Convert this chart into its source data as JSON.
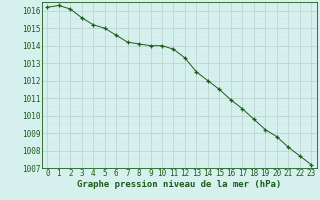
{
  "x": [
    0,
    1,
    2,
    3,
    4,
    5,
    6,
    7,
    8,
    9,
    10,
    11,
    12,
    13,
    14,
    15,
    16,
    17,
    18,
    19,
    20,
    21,
    22,
    23
  ],
  "y": [
    1016.2,
    1016.3,
    1016.1,
    1015.6,
    1015.2,
    1015.0,
    1014.6,
    1014.2,
    1014.1,
    1014.0,
    1014.0,
    1013.8,
    1013.3,
    1012.5,
    1012.0,
    1011.5,
    1010.9,
    1010.4,
    1009.8,
    1009.2,
    1008.8,
    1008.2,
    1007.7,
    1007.2
  ],
  "line_color": "#1a5c1a",
  "marker": "P",
  "marker_size": 2.5,
  "bg_color": "#d6f0ee",
  "grid_color_major": "#b8ceca",
  "grid_color_minor": "#cce4e0",
  "xlabel": "Graphe pression niveau de la mer (hPa)",
  "xlabel_fontsize": 6.5,
  "xlabel_color": "#1a5c1a",
  "tick_fontsize": 5.5,
  "tick_color": "#1a5c1a",
  "ylim": [
    1007,
    1016.5
  ],
  "xlim": [
    -0.5,
    23.5
  ],
  "yticks": [
    1007,
    1008,
    1009,
    1010,
    1011,
    1012,
    1013,
    1014,
    1015,
    1016
  ],
  "xticks": [
    0,
    1,
    2,
    3,
    4,
    5,
    6,
    7,
    8,
    9,
    10,
    11,
    12,
    13,
    14,
    15,
    16,
    17,
    18,
    19,
    20,
    21,
    22,
    23
  ]
}
